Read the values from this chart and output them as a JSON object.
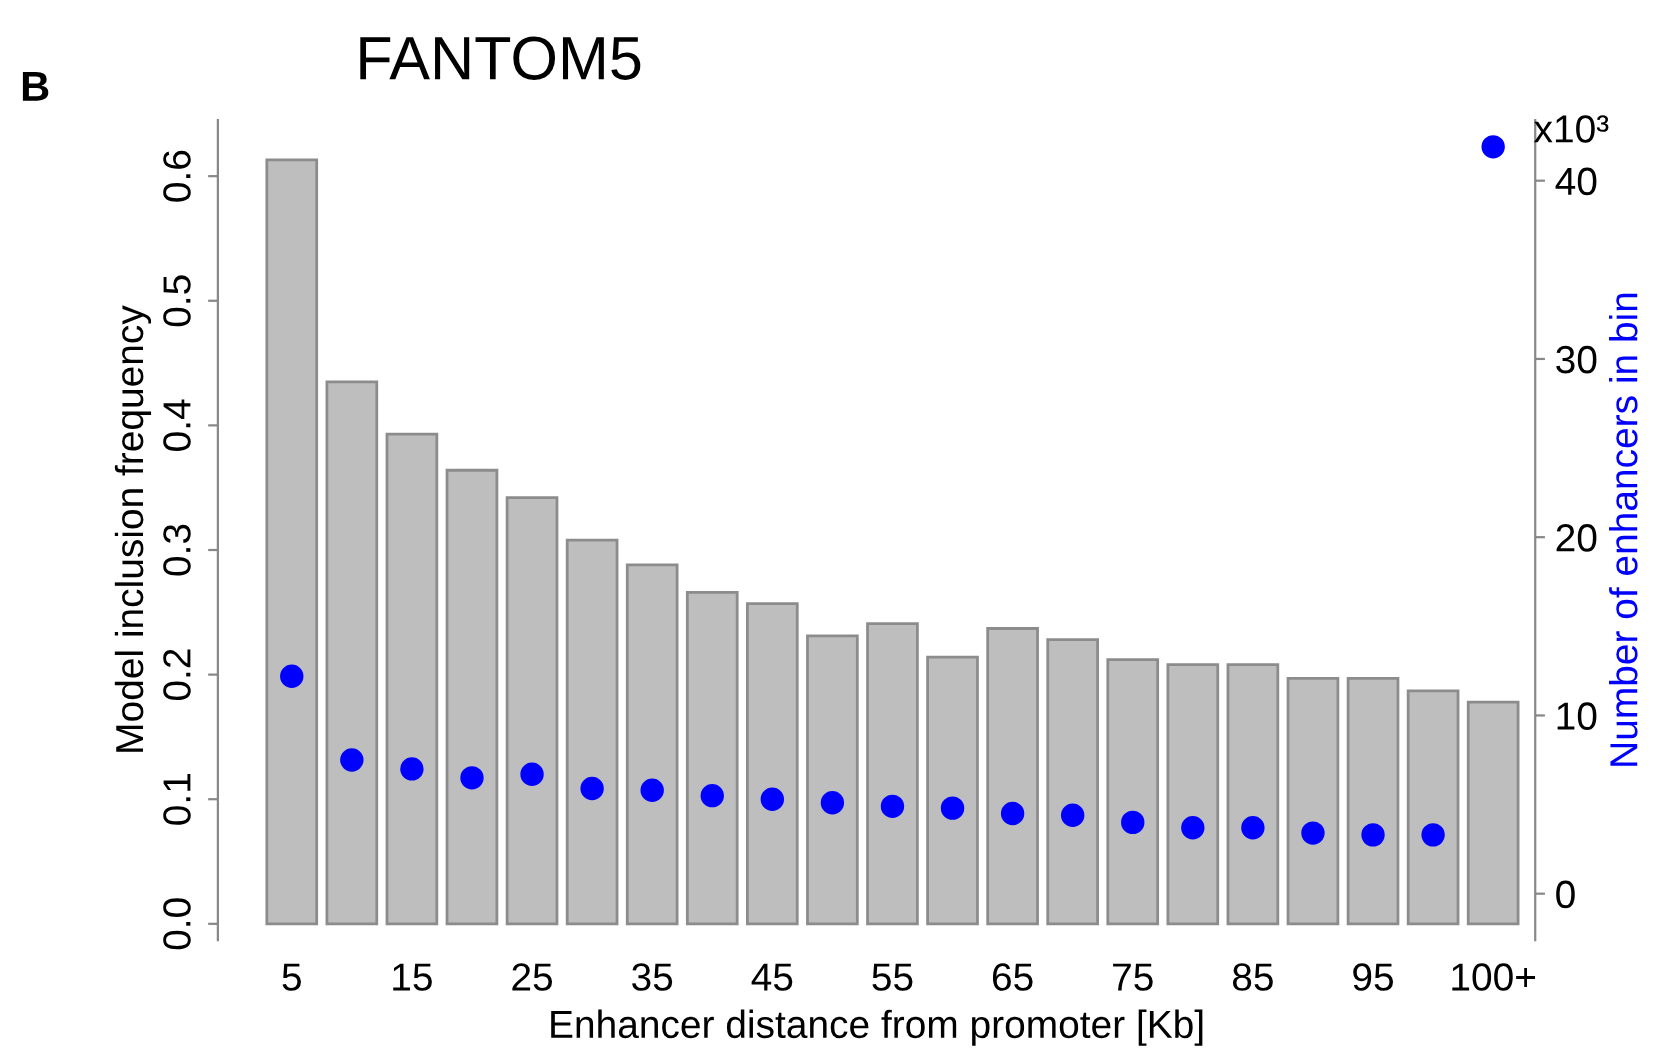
{
  "chart_data": {
    "type": "bar",
    "title": "FANTOM5",
    "xlabel": "Enhancer distance from promoter [Kb]",
    "ylabel": "Model inclusion frequency",
    "y2label": "Number of enhancers in bin",
    "annotations": [
      "B",
      "x10³"
    ],
    "categories": [
      "5",
      null,
      "15",
      null,
      "25",
      null,
      "35",
      null,
      "45",
      null,
      "55",
      null,
      "65",
      null,
      "75",
      null,
      "85",
      null,
      "95",
      null,
      "100+"
    ],
    "series": [
      {
        "color": "#bebebe",
        "values": [
          0.613,
          0.435,
          0.393,
          0.364,
          0.342,
          0.308,
          0.288,
          0.266,
          0.257,
          0.231,
          0.241,
          0.214,
          0.237,
          0.228,
          0.212,
          0.208,
          0.208,
          0.197,
          0.197,
          0.187,
          0.178
        ]
      },
      {
        "type": "scatter",
        "axis": "y2",
        "color": "#0000ff",
        "marker": "circle",
        "values": [
          12.2,
          7.5,
          7.0,
          6.5,
          6.7,
          5.9,
          5.8,
          5.5,
          5.3,
          5.1,
          4.9,
          4.8,
          4.5,
          4.4,
          4.0,
          3.7,
          3.7,
          3.4,
          3.3,
          3.3,
          41.9
        ]
      }
    ],
    "ylim": [
      -0.013,
      0.645
    ],
    "yticks": [
      {
        "value": 0,
        "label": "0.0"
      },
      0.1,
      0.2,
      0.3,
      0.4,
      0.5,
      0.6
    ],
    "y2lim": [
      -2.6,
      43.4
    ],
    "y2ticks": [
      0,
      10,
      20,
      30,
      40
    ],
    "grid": false,
    "legend": false
  }
}
